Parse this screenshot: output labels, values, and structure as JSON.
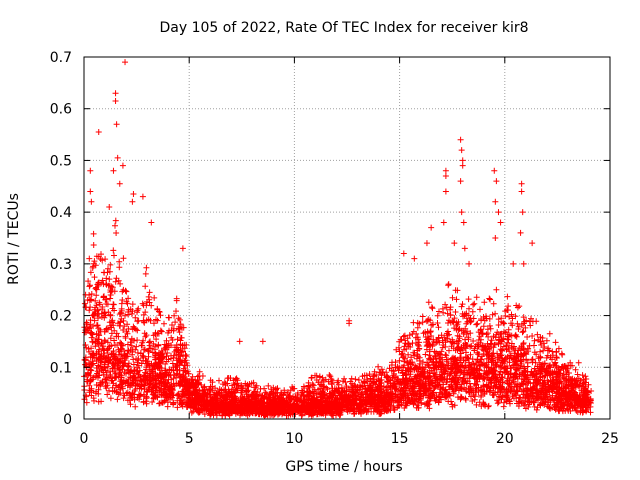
{
  "chart_data": {
    "type": "scatter",
    "title": "Day 105 of 2022, Rate Of TEC Index for receiver kir8",
    "xlabel": "GPS time / hours",
    "ylabel": "ROTI / TECUs",
    "xlim": [
      0,
      25
    ],
    "ylim": [
      0,
      0.7
    ],
    "xticks": [
      0,
      5,
      10,
      15,
      20,
      25
    ],
    "yticks": [
      0,
      0.1,
      0.2,
      0.3,
      0.4,
      0.5,
      0.6,
      0.7
    ],
    "grid": true,
    "marker": "+",
    "color": "#ff0000",
    "profile": [
      {
        "x": 0.0,
        "base": 0.08,
        "spread": 0.22
      },
      {
        "x": 0.5,
        "base": 0.1,
        "spread": 0.26
      },
      {
        "x": 1.0,
        "base": 0.1,
        "spread": 0.24
      },
      {
        "x": 1.5,
        "base": 0.09,
        "spread": 0.28
      },
      {
        "x": 2.0,
        "base": 0.08,
        "spread": 0.22
      },
      {
        "x": 2.5,
        "base": 0.06,
        "spread": 0.16
      },
      {
        "x": 3.0,
        "base": 0.08,
        "spread": 0.2
      },
      {
        "x": 3.5,
        "base": 0.07,
        "spread": 0.14
      },
      {
        "x": 4.0,
        "base": 0.06,
        "spread": 0.14
      },
      {
        "x": 4.5,
        "base": 0.07,
        "spread": 0.2
      },
      {
        "x": 5.0,
        "base": 0.04,
        "spread": 0.06
      },
      {
        "x": 6.0,
        "base": 0.02,
        "spread": 0.05
      },
      {
        "x": 7.0,
        "base": 0.02,
        "spread": 0.06
      },
      {
        "x": 8.0,
        "base": 0.02,
        "spread": 0.05
      },
      {
        "x": 9.0,
        "base": 0.02,
        "spread": 0.04
      },
      {
        "x": 10.0,
        "base": 0.02,
        "spread": 0.04
      },
      {
        "x": 11.0,
        "base": 0.02,
        "spread": 0.07
      },
      {
        "x": 12.0,
        "base": 0.02,
        "spread": 0.06
      },
      {
        "x": 13.0,
        "base": 0.03,
        "spread": 0.05
      },
      {
        "x": 14.0,
        "base": 0.03,
        "spread": 0.07
      },
      {
        "x": 15.0,
        "base": 0.05,
        "spread": 0.12
      },
      {
        "x": 16.0,
        "base": 0.06,
        "spread": 0.15
      },
      {
        "x": 17.0,
        "base": 0.07,
        "spread": 0.17
      },
      {
        "x": 18.0,
        "base": 0.08,
        "spread": 0.2
      },
      {
        "x": 19.0,
        "base": 0.07,
        "spread": 0.16
      },
      {
        "x": 20.0,
        "base": 0.07,
        "spread": 0.17
      },
      {
        "x": 21.0,
        "base": 0.06,
        "spread": 0.16
      },
      {
        "x": 22.0,
        "base": 0.05,
        "spread": 0.12
      },
      {
        "x": 23.0,
        "base": 0.04,
        "spread": 0.08
      },
      {
        "x": 24.0,
        "base": 0.03,
        "spread": 0.05
      }
    ],
    "outliers": [
      {
        "x": 0.3,
        "y": 0.48
      },
      {
        "x": 0.3,
        "y": 0.44
      },
      {
        "x": 0.35,
        "y": 0.42
      },
      {
        "x": 0.7,
        "y": 0.555
      },
      {
        "x": 1.2,
        "y": 0.41
      },
      {
        "x": 1.4,
        "y": 0.48
      },
      {
        "x": 1.5,
        "y": 0.63
      },
      {
        "x": 1.5,
        "y": 0.615
      },
      {
        "x": 1.55,
        "y": 0.57
      },
      {
        "x": 1.6,
        "y": 0.505
      },
      {
        "x": 1.7,
        "y": 0.455
      },
      {
        "x": 1.85,
        "y": 0.49
      },
      {
        "x": 1.95,
        "y": 0.69
      },
      {
        "x": 2.3,
        "y": 0.42
      },
      {
        "x": 2.35,
        "y": 0.435
      },
      {
        "x": 2.8,
        "y": 0.43
      },
      {
        "x": 3.2,
        "y": 0.38
      },
      {
        "x": 4.7,
        "y": 0.33
      },
      {
        "x": 12.6,
        "y": 0.19
      },
      {
        "x": 12.6,
        "y": 0.185
      },
      {
        "x": 8.5,
        "y": 0.15
      },
      {
        "x": 7.4,
        "y": 0.15
      },
      {
        "x": 16.3,
        "y": 0.34
      },
      {
        "x": 16.5,
        "y": 0.37
      },
      {
        "x": 17.2,
        "y": 0.48
      },
      {
        "x": 17.2,
        "y": 0.47
      },
      {
        "x": 17.2,
        "y": 0.44
      },
      {
        "x": 17.1,
        "y": 0.38
      },
      {
        "x": 17.6,
        "y": 0.34
      },
      {
        "x": 17.9,
        "y": 0.54
      },
      {
        "x": 17.95,
        "y": 0.52
      },
      {
        "x": 18.0,
        "y": 0.5
      },
      {
        "x": 18.0,
        "y": 0.49
      },
      {
        "x": 17.9,
        "y": 0.46
      },
      {
        "x": 17.95,
        "y": 0.4
      },
      {
        "x": 18.05,
        "y": 0.38
      },
      {
        "x": 18.1,
        "y": 0.33
      },
      {
        "x": 18.3,
        "y": 0.3
      },
      {
        "x": 19.5,
        "y": 0.48
      },
      {
        "x": 19.6,
        "y": 0.46
      },
      {
        "x": 19.55,
        "y": 0.42
      },
      {
        "x": 19.7,
        "y": 0.4
      },
      {
        "x": 19.8,
        "y": 0.38
      },
      {
        "x": 19.55,
        "y": 0.35
      },
      {
        "x": 20.8,
        "y": 0.455
      },
      {
        "x": 20.8,
        "y": 0.44
      },
      {
        "x": 20.85,
        "y": 0.4
      },
      {
        "x": 20.75,
        "y": 0.36
      },
      {
        "x": 20.9,
        "y": 0.3
      },
      {
        "x": 21.3,
        "y": 0.34
      },
      {
        "x": 19.6,
        "y": 0.25
      },
      {
        "x": 20.4,
        "y": 0.3
      },
      {
        "x": 15.2,
        "y": 0.32
      },
      {
        "x": 15.7,
        "y": 0.31
      }
    ]
  }
}
